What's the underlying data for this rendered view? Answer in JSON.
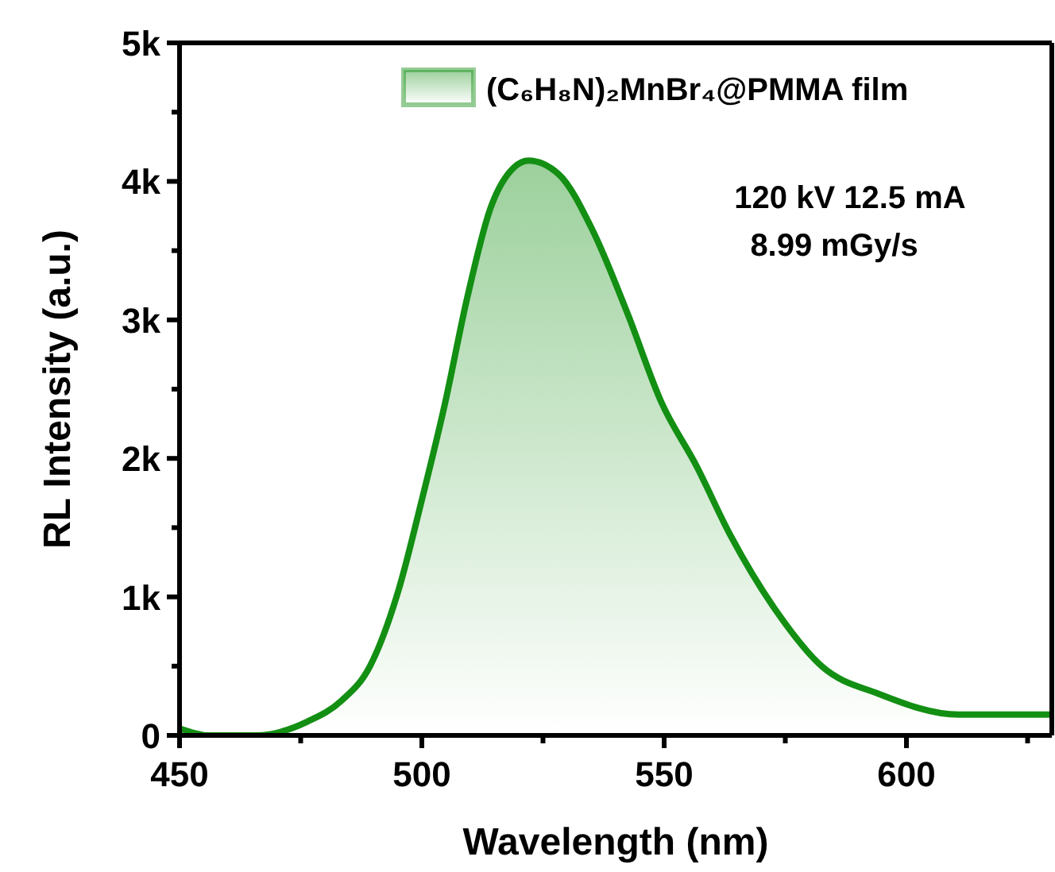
{
  "chart_data": {
    "type": "area",
    "xlabel": "Wavelength (nm)",
    "ylabel": "RL Intensity (a.u.)",
    "xlim": [
      450,
      630
    ],
    "xticks": [
      450,
      {
        "value": 475,
        "label": null
      },
      500,
      {
        "value": 525,
        "label": null
      },
      550,
      {
        "value": 575,
        "label": null
      },
      600,
      {
        "value": 625,
        "label": null
      }
    ],
    "ylim": [
      0,
      5000
    ],
    "yticks": [
      {
        "value": 0,
        "label": "0"
      },
      {
        "value": 500,
        "label": null
      },
      {
        "value": 1000,
        "label": "1k"
      },
      {
        "value": 1500,
        "label": null
      },
      {
        "value": 2000,
        "label": "2k"
      },
      {
        "value": 2500,
        "label": null
      },
      {
        "value": 3000,
        "label": "3k"
      },
      {
        "value": 3500,
        "label": null
      },
      {
        "value": 4000,
        "label": "4k"
      },
      {
        "value": 4500,
        "label": null
      },
      {
        "value": 5000,
        "label": "5k"
      }
    ],
    "series": [
      {
        "name": "(C₆H₈N)₂MnBr₄@PMMA film",
        "color": "#138f13",
        "x": [
          450,
          456,
          466,
          476.4,
          483.4,
          489.3,
          495.2,
          500,
          504.8,
          509.3,
          514.1,
          519,
          522,
          528.3,
          535.2,
          542.4,
          549.5,
          556.6,
          563.6,
          573.1,
          582.5,
          594.3,
          610.8,
          630
        ],
        "values": [
          50,
          0,
          0,
          100,
          250,
          500,
          1050,
          1700,
          2400,
          3150,
          3800,
          4100,
          4150,
          4050,
          3650,
          3050,
          2400,
          1950,
          1450,
          900,
          500,
          300,
          150,
          150
        ]
      }
    ],
    "legend": "top right",
    "grid": false,
    "annotations": [
      "120 kV 12.5 mA",
      "8.99 mGy/s"
    ]
  }
}
